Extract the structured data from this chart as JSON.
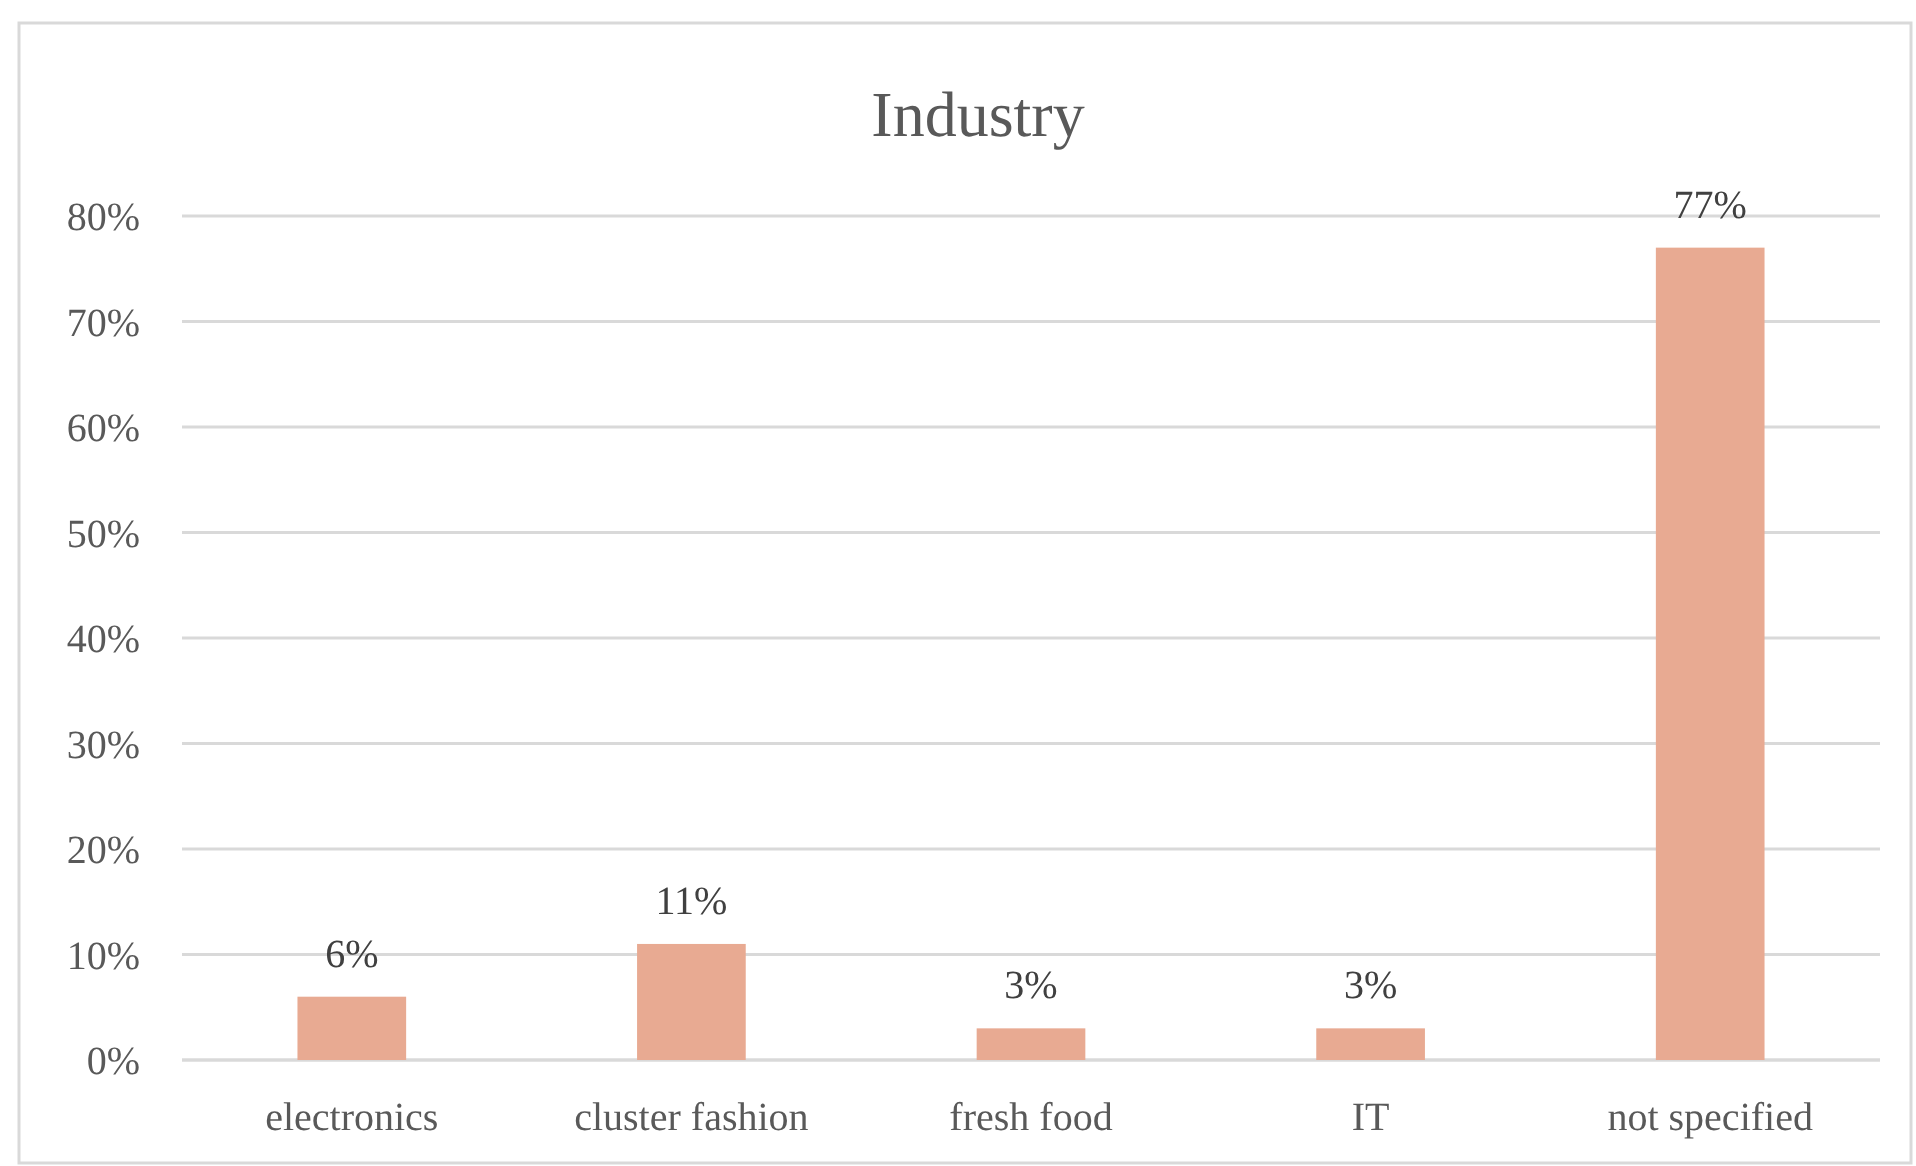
{
  "chart_data": {
    "type": "bar",
    "title": "Industry",
    "categories": [
      "electronics",
      "cluster fashion",
      "fresh food",
      "IT",
      "not specified"
    ],
    "values": [
      6,
      11,
      3,
      3,
      77
    ],
    "color": "#e8aa92",
    "value_labels": [
      "6%",
      "11%",
      "3%",
      "3%",
      "77%"
    ],
    "ylim": [
      0,
      80
    ],
    "yticks": [
      {
        "value": 0,
        "label": "0%"
      },
      {
        "value": 10,
        "label": "10%"
      },
      {
        "value": 20,
        "label": "20%"
      },
      {
        "value": 30,
        "label": "30%"
      },
      {
        "value": 40,
        "label": "40%"
      },
      {
        "value": 50,
        "label": "50%"
      },
      {
        "value": 60,
        "label": "60%"
      },
      {
        "value": 70,
        "label": "70%"
      },
      {
        "value": 80,
        "label": "80%"
      }
    ],
    "grid": "y"
  }
}
